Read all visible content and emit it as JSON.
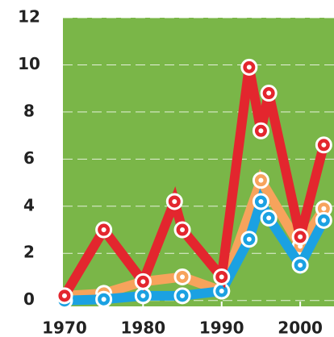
{
  "chart_data": {
    "type": "line",
    "xlim": [
      1969.8,
      2004.3
    ],
    "xticks": [
      1970,
      1980,
      1990,
      2000
    ],
    "ylim": [
      -0.25,
      12
    ],
    "yticks": [
      0,
      2,
      4,
      6,
      8,
      10,
      12
    ],
    "grid": true,
    "background": "#7ab648",
    "series": [
      {
        "color": "#f7a35c",
        "x": [
          1970,
          1975,
          1980,
          1985,
          1990,
          1995,
          2000,
          2003
        ],
        "values": [
          0.2,
          0.3,
          0.8,
          1.0,
          0.4,
          5.1,
          2.3,
          3.9
        ]
      },
      {
        "color": "#1ba1e2",
        "x": [
          1970,
          1975,
          1980,
          1985,
          1990,
          1993.5,
          1995,
          1996,
          2000,
          2003
        ],
        "values": [
          0,
          0.05,
          0.2,
          0.2,
          0.4,
          2.6,
          4.2,
          3.5,
          1.5,
          3.4
        ]
      },
      {
        "color": "#e3262e",
        "x": [
          1970,
          1975,
          1980,
          1984,
          1985,
          1990,
          1993.5,
          1995,
          1996,
          2000,
          2003
        ],
        "values": [
          0.2,
          3.0,
          0.8,
          4.2,
          3.0,
          1.0,
          9.9,
          7.2,
          8.8,
          2.7,
          6.6
        ]
      }
    ]
  }
}
